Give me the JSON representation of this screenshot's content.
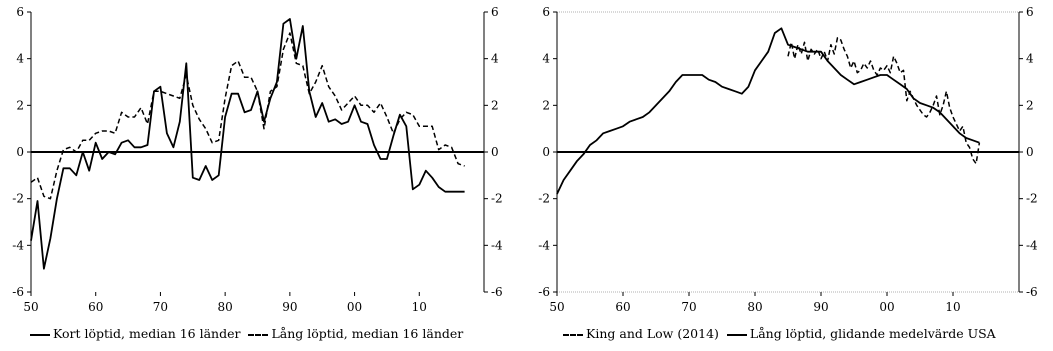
{
  "chart_data": [
    {
      "type": "line",
      "x_ticks": [
        50,
        60,
        70,
        80,
        90,
        0,
        10
      ],
      "x_tick_labels": [
        "50",
        "60",
        "70",
        "80",
        "90",
        "00",
        "10"
      ],
      "y_ticks": [
        -6,
        -4,
        -2,
        0,
        2,
        4,
        6
      ],
      "y_tick_labels": [
        "-6",
        "-4",
        "-2",
        "0",
        "2",
        "4",
        "6"
      ],
      "xlim": [
        1950,
        2020
      ],
      "ylim": [
        -6,
        6
      ],
      "legend_position": "bottom",
      "series": [
        {
          "name": "Kort löptid, median 16 länder",
          "style": "solid",
          "color": "#000000",
          "x": [
            1950,
            1951,
            1952,
            1953,
            1954,
            1955,
            1956,
            1957,
            1958,
            1959,
            1960,
            1961,
            1962,
            1963,
            1964,
            1965,
            1966,
            1967,
            1968,
            1969,
            1970,
            1971,
            1972,
            1973,
            1974,
            1975,
            1976,
            1977,
            1978,
            1979,
            1980,
            1981,
            1982,
            1983,
            1984,
            1985,
            1986,
            1987,
            1988,
            1989,
            1990,
            1991,
            1992,
            1993,
            1994,
            1995,
            1996,
            1997,
            1998,
            1999,
            2000,
            2001,
            2002,
            2003,
            2004,
            2005,
            2006,
            2007,
            2008,
            2009,
            2010,
            2011,
            2012,
            2013,
            2014,
            2015,
            2016,
            2017
          ],
          "y": [
            -3.8,
            -2.1,
            -5.0,
            -3.7,
            -2.0,
            -0.7,
            -0.7,
            -1.0,
            0.0,
            -0.8,
            0.4,
            -0.3,
            0.0,
            -0.1,
            0.4,
            0.5,
            0.2,
            0.2,
            0.3,
            2.6,
            2.8,
            0.8,
            0.2,
            1.3,
            3.8,
            -1.1,
            -1.2,
            -0.6,
            -1.2,
            -1.0,
            1.5,
            2.5,
            2.5,
            1.7,
            1.8,
            2.6,
            1.3,
            2.3,
            3.0,
            5.5,
            5.7,
            4.0,
            5.4,
            2.6,
            1.5,
            2.1,
            1.3,
            1.4,
            1.2,
            1.3,
            2.0,
            1.3,
            1.2,
            0.3,
            -0.3,
            -0.3,
            0.7,
            1.6,
            1.1,
            -1.6,
            -1.4,
            -0.8,
            -1.1,
            -1.5,
            -1.7,
            -1.7,
            -1.7,
            -1.7
          ]
        },
        {
          "name": "Lång löptid, median 16 länder",
          "style": "dashed",
          "color": "#000000",
          "x": [
            1950,
            1951,
            1952,
            1953,
            1954,
            1955,
            1956,
            1957,
            1958,
            1959,
            1960,
            1961,
            1962,
            1963,
            1964,
            1965,
            1966,
            1967,
            1968,
            1969,
            1970,
            1971,
            1972,
            1973,
            1974,
            1975,
            1976,
            1977,
            1978,
            1979,
            1980,
            1981,
            1982,
            1983,
            1984,
            1985,
            1986,
            1987,
            1988,
            1989,
            1990,
            1991,
            1992,
            1993,
            1994,
            1995,
            1996,
            1997,
            1998,
            1999,
            2000,
            2001,
            2002,
            2003,
            2004,
            2005,
            2006,
            2007,
            2008,
            2009,
            2010,
            2011,
            2012,
            2013,
            2014,
            2015,
            2016,
            2017
          ],
          "y": [
            -1.3,
            -1.1,
            -1.9,
            -2.0,
            -0.8,
            0.1,
            0.2,
            0.0,
            0.5,
            0.5,
            0.8,
            0.9,
            0.9,
            0.8,
            1.7,
            1.5,
            1.5,
            1.9,
            1.2,
            2.6,
            2.6,
            2.5,
            2.4,
            2.3,
            3.3,
            2.0,
            1.4,
            1.0,
            0.4,
            0.5,
            2.3,
            3.7,
            3.9,
            3.2,
            3.2,
            2.6,
            1.0,
            2.6,
            2.8,
            4.4,
            5.1,
            3.8,
            3.7,
            2.5,
            3.0,
            3.7,
            2.8,
            2.4,
            1.8,
            2.1,
            2.4,
            2.0,
            2.0,
            1.7,
            2.1,
            1.5,
            0.8,
            1.4,
            1.7,
            1.6,
            1.1,
            1.1,
            1.1,
            0.1,
            0.3,
            0.2,
            -0.5,
            -0.6
          ]
        }
      ]
    },
    {
      "type": "line",
      "x_ticks": [
        50,
        60,
        70,
        80,
        90,
        0,
        10
      ],
      "x_tick_labels": [
        "50",
        "60",
        "70",
        "80",
        "90",
        "00",
        "10"
      ],
      "y_ticks": [
        -6,
        -4,
        -2,
        0,
        2,
        4,
        6
      ],
      "y_tick_labels": [
        "-6",
        "-4",
        "-2",
        "0",
        "2",
        "4",
        "6"
      ],
      "xlim": [
        1950,
        2020
      ],
      "ylim": [
        -6,
        6
      ],
      "legend_position": "bottom",
      "series": [
        {
          "name": "King and Low (2014)",
          "style": "dashed",
          "color": "#000000",
          "x": [
            1985.0,
            1985.5,
            1986.0,
            1986.5,
            1987.0,
            1987.5,
            1988.0,
            1988.5,
            1989.0,
            1989.5,
            1990.0,
            1990.5,
            1991.0,
            1991.5,
            1992.0,
            1992.5,
            1993.0,
            1993.5,
            1994.0,
            1994.5,
            1995.0,
            1995.5,
            1996.0,
            1996.5,
            1997.0,
            1997.5,
            1998.0,
            1998.5,
            1999.0,
            1999.5,
            2000.0,
            2000.5,
            2001.0,
            2001.5,
            2002.0,
            2002.5,
            2003.0,
            2003.5,
            2004.0,
            2004.5,
            2005.0,
            2005.5,
            2006.0,
            2006.5,
            2007.0,
            2007.5,
            2008.0,
            2008.5,
            2009.0,
            2009.5,
            2010.0,
            2010.5,
            2011.0,
            2011.5,
            2012.0,
            2012.5,
            2013.0,
            2013.5,
            2014.0
          ],
          "y": [
            4.1,
            4.7,
            4.0,
            4.6,
            4.2,
            4.7,
            3.9,
            4.4,
            4.2,
            4.4,
            4.0,
            4.3,
            3.9,
            4.6,
            4.2,
            4.9,
            4.8,
            4.4,
            4.1,
            3.6,
            3.9,
            3.4,
            3.5,
            3.8,
            3.6,
            3.9,
            3.5,
            3.3,
            3.6,
            3.5,
            3.7,
            3.4,
            4.1,
            3.8,
            3.4,
            3.5,
            2.2,
            2.6,
            2.3,
            2.0,
            1.8,
            1.6,
            1.5,
            1.7,
            2.0,
            2.4,
            1.6,
            2.0,
            2.6,
            1.9,
            1.5,
            1.2,
            0.9,
            1.1,
            0.4,
            0.2,
            -0.3,
            -0.5,
            0.4
          ]
        },
        {
          "name": "Lång löptid, glidande medelvärde USA",
          "style": "solid",
          "color": "#000000",
          "x": [
            1950,
            1951,
            1952,
            1953,
            1954,
            1955,
            1956,
            1957,
            1958,
            1959,
            1960,
            1961,
            1962,
            1963,
            1964,
            1965,
            1966,
            1967,
            1968,
            1969,
            1970,
            1971,
            1972,
            1973,
            1974,
            1975,
            1976,
            1977,
            1978,
            1979,
            1980,
            1981,
            1982,
            1983,
            1984,
            1985,
            1986,
            1987,
            1988,
            1989,
            1990,
            1991,
            1992,
            1993,
            1994,
            1995,
            1996,
            1997,
            1998,
            1999,
            2000,
            2001,
            2002,
            2003,
            2004,
            2005,
            2006,
            2007,
            2008,
            2009,
            2010,
            2011,
            2012,
            2013,
            2014
          ],
          "y": [
            -1.8,
            -1.2,
            -0.8,
            -0.4,
            -0.1,
            0.3,
            0.5,
            0.8,
            0.9,
            1.0,
            1.1,
            1.3,
            1.4,
            1.5,
            1.7,
            2.0,
            2.3,
            2.6,
            3.0,
            3.3,
            3.3,
            3.3,
            3.3,
            3.1,
            3.0,
            2.8,
            2.7,
            2.6,
            2.5,
            2.8,
            3.5,
            3.9,
            4.3,
            5.1,
            5.3,
            4.6,
            4.5,
            4.4,
            4.3,
            4.3,
            4.3,
            3.9,
            3.6,
            3.3,
            3.1,
            2.9,
            3.0,
            3.1,
            3.2,
            3.3,
            3.3,
            3.1,
            2.9,
            2.7,
            2.3,
            2.1,
            2.0,
            1.9,
            1.7,
            1.4,
            1.1,
            0.8,
            0.6,
            0.5,
            0.4
          ]
        }
      ]
    }
  ]
}
